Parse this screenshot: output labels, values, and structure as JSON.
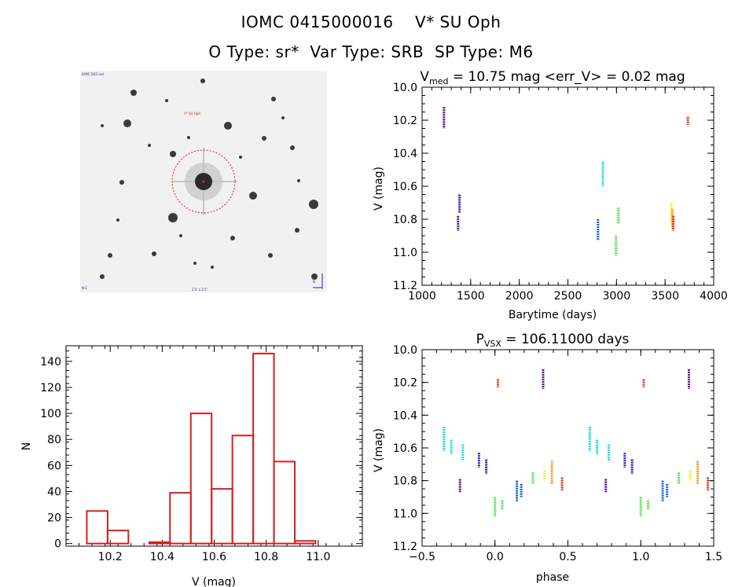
{
  "header": {
    "line1": "IOMC 0415000016    V* SU Oph",
    "line2": "O Type: sr*  Var Type: SRB  SP Type: M6"
  },
  "thumbnail": {
    "label_top_left": "IOMC DSS red",
    "label_target": "V* SU Oph",
    "label_bottom_left": "N E",
    "label_bottom_center": "2.5' x 2.5'",
    "label_bottom_right": "N"
  },
  "colors": {
    "violet": "#5a0f8c",
    "indigo": "#2f1fa8",
    "blue": "#1a5fd6",
    "cyan": "#1fd6d6",
    "green": "#4fe04f",
    "yellow": "#f0f01a",
    "orange": "#f0961a",
    "red": "#e0321a",
    "hist": "#d22020"
  },
  "chart_data": [
    {
      "type": "scatter",
      "name": "light-curve",
      "title_main": "V",
      "title_sub": "med",
      "title_rest": " = 10.75 mag <err_V> = 0.02 mag",
      "xlabel": "Barytime (days)",
      "ylabel": "V (mag)",
      "xlim": [
        1000,
        4000
      ],
      "ylim": [
        11.2,
        10.0
      ],
      "xticks": [
        1000,
        1500,
        2000,
        2500,
        3000,
        3500,
        4000
      ],
      "yticks": [
        10.0,
        10.2,
        10.4,
        10.6,
        10.8,
        11.0,
        11.2
      ],
      "groups": [
        {
          "x": 1225,
          "v_min": 10.12,
          "v_max": 10.25,
          "color": "violet"
        },
        {
          "x": 1370,
          "v_min": 10.78,
          "v_max": 10.87,
          "color": "violet"
        },
        {
          "x": 1385,
          "v_min": 10.65,
          "v_max": 10.76,
          "color": "indigo"
        },
        {
          "x": 2810,
          "v_min": 10.8,
          "v_max": 10.93,
          "color": "blue"
        },
        {
          "x": 2860,
          "v_min": 10.45,
          "v_max": 10.6,
          "color": "cyan"
        },
        {
          "x": 2995,
          "v_min": 10.9,
          "v_max": 11.02,
          "color": "green"
        },
        {
          "x": 3020,
          "v_min": 10.73,
          "v_max": 10.83,
          "color": "green"
        },
        {
          "x": 3565,
          "v_min": 10.7,
          "v_max": 10.82,
          "color": "yellow"
        },
        {
          "x": 3575,
          "v_min": 10.74,
          "v_max": 10.86,
          "color": "orange"
        },
        {
          "x": 3585,
          "v_min": 10.78,
          "v_max": 10.87,
          "color": "red"
        },
        {
          "x": 3735,
          "v_min": 10.18,
          "v_max": 10.23,
          "color": "red"
        }
      ]
    },
    {
      "type": "bar",
      "name": "histogram",
      "xlabel": "V (mag)",
      "ylabel": "N",
      "xlim": [
        10.03,
        11.17
      ],
      "ylim": [
        -2,
        152
      ],
      "xticks": [
        10.2,
        10.4,
        10.6,
        10.8,
        11.0
      ],
      "yticks": [
        0,
        20,
        40,
        60,
        80,
        100,
        120,
        140
      ],
      "bin_width": 0.08,
      "bins": [
        {
          "left": 10.11,
          "count": 25
        },
        {
          "left": 10.19,
          "count": 10
        },
        {
          "left": 10.27,
          "count": 0
        },
        {
          "left": 10.35,
          "count": 1
        },
        {
          "left": 10.43,
          "count": 39
        },
        {
          "left": 10.51,
          "count": 100
        },
        {
          "left": 10.59,
          "count": 42
        },
        {
          "left": 10.67,
          "count": 83
        },
        {
          "left": 10.75,
          "count": 146
        },
        {
          "left": 10.83,
          "count": 63
        },
        {
          "left": 10.91,
          "count": 2
        }
      ]
    },
    {
      "type": "scatter",
      "name": "phase-curve",
      "title_main": "P",
      "title_sub": "VSX",
      "title_rest": " = 106.11000 days",
      "xlabel": "phase",
      "ylabel": "V (mag)",
      "xlim": [
        -0.5,
        1.5
      ],
      "ylim": [
        11.2,
        10.0
      ],
      "xticks": [
        -0.5,
        0.0,
        0.5,
        1.0,
        1.5
      ],
      "xtick_labels": [
        "−0.5",
        "0.0",
        "0.5",
        "1.0",
        "1.5"
      ],
      "yticks": [
        10.0,
        10.2,
        10.4,
        10.6,
        10.8,
        11.0,
        11.2
      ],
      "groups": [
        {
          "x": -0.35,
          "v_min": 10.47,
          "v_max": 10.62,
          "color": "cyan"
        },
        {
          "x": -0.3,
          "v_min": 10.55,
          "v_max": 10.64,
          "color": "cyan"
        },
        {
          "x": -0.22,
          "v_min": 10.58,
          "v_max": 10.68,
          "color": "cyan"
        },
        {
          "x": -0.24,
          "v_min": 10.79,
          "v_max": 10.87,
          "color": "violet"
        },
        {
          "x": -0.11,
          "v_min": 10.63,
          "v_max": 10.72,
          "color": "indigo"
        },
        {
          "x": -0.06,
          "v_min": 10.67,
          "v_max": 10.76,
          "color": "indigo"
        },
        {
          "x": 0.0,
          "v_min": 10.9,
          "v_max": 11.02,
          "color": "green"
        },
        {
          "x": 0.05,
          "v_min": 10.92,
          "v_max": 10.98,
          "color": "green"
        },
        {
          "x": 0.02,
          "v_min": 10.18,
          "v_max": 10.23,
          "color": "red"
        },
        {
          "x": 0.15,
          "v_min": 10.8,
          "v_max": 10.93,
          "color": "blue"
        },
        {
          "x": 0.18,
          "v_min": 10.82,
          "v_max": 10.9,
          "color": "blue"
        },
        {
          "x": 0.26,
          "v_min": 10.75,
          "v_max": 10.82,
          "color": "green"
        },
        {
          "x": 0.33,
          "v_min": 10.12,
          "v_max": 10.24,
          "color": "violet"
        },
        {
          "x": 0.34,
          "v_min": 10.74,
          "v_max": 10.8,
          "color": "yellow"
        },
        {
          "x": 0.39,
          "v_min": 10.68,
          "v_max": 10.82,
          "color": "orange"
        },
        {
          "x": 0.46,
          "v_min": 10.78,
          "v_max": 10.86,
          "color": "red"
        },
        {
          "x": 0.65,
          "v_min": 10.47,
          "v_max": 10.62,
          "color": "cyan"
        },
        {
          "x": 0.7,
          "v_min": 10.55,
          "v_max": 10.64,
          "color": "cyan"
        },
        {
          "x": 0.78,
          "v_min": 10.58,
          "v_max": 10.68,
          "color": "cyan"
        },
        {
          "x": 0.76,
          "v_min": 10.79,
          "v_max": 10.87,
          "color": "violet"
        },
        {
          "x": 0.89,
          "v_min": 10.63,
          "v_max": 10.72,
          "color": "indigo"
        },
        {
          "x": 0.94,
          "v_min": 10.67,
          "v_max": 10.76,
          "color": "indigo"
        },
        {
          "x": 1.0,
          "v_min": 10.9,
          "v_max": 11.02,
          "color": "green"
        },
        {
          "x": 1.05,
          "v_min": 10.92,
          "v_max": 10.98,
          "color": "green"
        },
        {
          "x": 1.02,
          "v_min": 10.18,
          "v_max": 10.23,
          "color": "red"
        },
        {
          "x": 1.15,
          "v_min": 10.8,
          "v_max": 10.93,
          "color": "blue"
        },
        {
          "x": 1.18,
          "v_min": 10.82,
          "v_max": 10.9,
          "color": "blue"
        },
        {
          "x": 1.26,
          "v_min": 10.75,
          "v_max": 10.82,
          "color": "green"
        },
        {
          "x": 1.33,
          "v_min": 10.12,
          "v_max": 10.24,
          "color": "violet"
        },
        {
          "x": 1.34,
          "v_min": 10.74,
          "v_max": 10.8,
          "color": "yellow"
        },
        {
          "x": 1.39,
          "v_min": 10.68,
          "v_max": 10.82,
          "color": "orange"
        },
        {
          "x": 1.46,
          "v_min": 10.78,
          "v_max": 10.86,
          "color": "red"
        }
      ]
    }
  ]
}
